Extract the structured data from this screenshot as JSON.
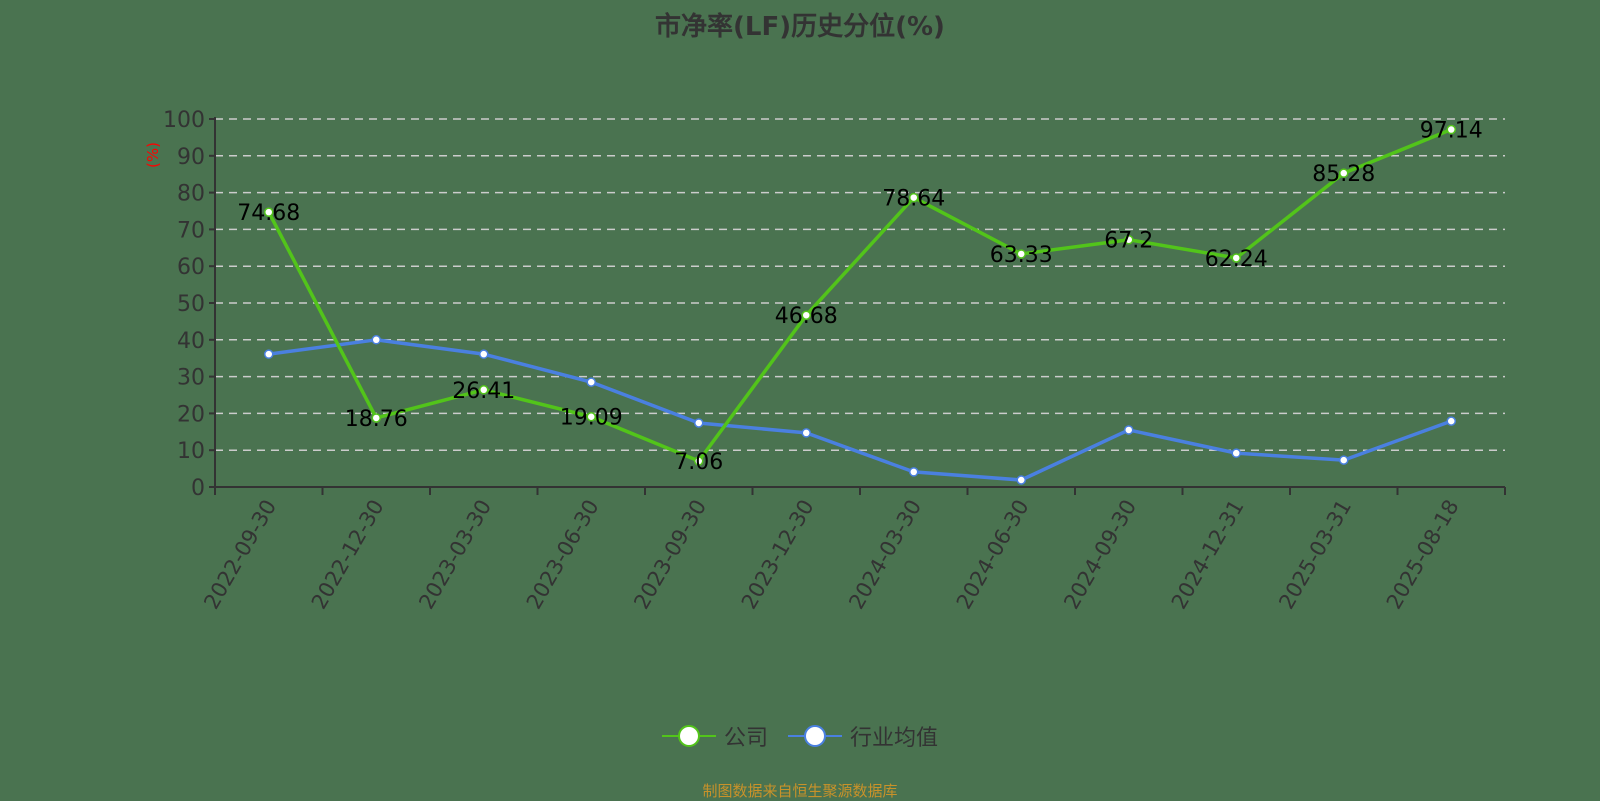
{
  "title": "市净率(LF)历史分位(%)",
  "y_axis_unit": "(%)",
  "legend": [
    {
      "label": "公司",
      "color": "#52c41a"
    },
    {
      "label": "行业均值",
      "color": "#4a80e0"
    }
  ],
  "source": "制图数据来自恒生聚源数据库",
  "colors": {
    "background": "#4a7350",
    "company": "#52c41a",
    "industry": "#4a80e0",
    "grid": "#cccccc",
    "axis": "#333333",
    "unit": "#ff0000"
  },
  "chart_data": {
    "type": "line",
    "title": "市净率(LF)历史分位(%)",
    "xlabel": "",
    "ylabel": "(%)",
    "ylim": [
      0,
      100
    ],
    "yticks": [
      0,
      10,
      20,
      30,
      40,
      50,
      60,
      70,
      80,
      90,
      100
    ],
    "grid": true,
    "legend_position": "bottom",
    "categories": [
      "2022-09-30",
      "2022-12-30",
      "2023-03-30",
      "2023-06-30",
      "2023-09-30",
      "2023-12-30",
      "2024-03-30",
      "2024-06-30",
      "2024-09-30",
      "2024-12-31",
      "2025-03-31",
      "2025-08-18"
    ],
    "series": [
      {
        "name": "公司",
        "values": [
          74.68,
          18.76,
          26.41,
          19.09,
          7.06,
          46.68,
          78.64,
          63.33,
          67.2,
          62.24,
          85.28,
          97.14
        ],
        "labels": [
          "74.68",
          "18.76",
          "26.41",
          "19.09",
          "7.06",
          "46.68",
          "78.64",
          "63.33",
          "67.2",
          "62.24",
          "85.28",
          "97.14"
        ]
      },
      {
        "name": "行业均值",
        "values": [
          36.1,
          40.0,
          36.1,
          28.5,
          17.4,
          14.7,
          4.1,
          1.9,
          15.5,
          9.2,
          7.3,
          17.9
        ]
      }
    ]
  }
}
